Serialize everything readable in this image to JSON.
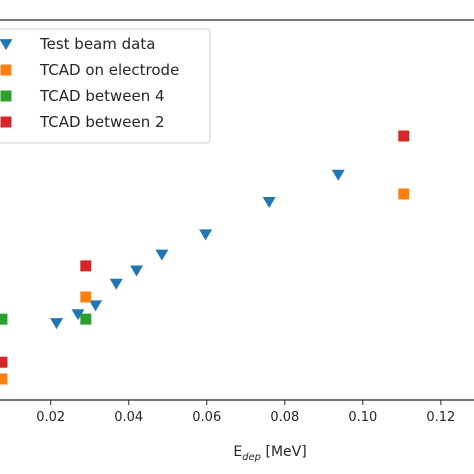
{
  "chart_data": {
    "type": "scatter",
    "title": "",
    "xlabel_main": "E",
    "xlabel_sub": "dep",
    "xlabel_unit": " [MeV]",
    "ylabel": "",
    "xlim": [
      0.007,
      0.1285
    ],
    "ylim": [
      0.0,
      1.0
    ],
    "x_ticks": [
      0.02,
      0.04,
      0.06,
      0.08,
      0.1,
      0.12
    ],
    "x_tick_labels": [
      "0.02",
      "0.04",
      "0.06",
      "0.08",
      "0.10",
      "0.12"
    ],
    "grid": false,
    "legend_position": "upper-left",
    "series": [
      {
        "name": "Test beam data",
        "marker": "triangle-down",
        "color": "#1f77b4",
        "x": [
          0.0215,
          0.027,
          0.0315,
          0.0368,
          0.042,
          0.0485,
          0.0597,
          0.076,
          0.0937
        ],
        "y": [
          0.1987,
          0.2302,
          0.2617,
          0.3382,
          0.3854,
          0.4416,
          0.5135,
          0.6281,
          0.7247
        ]
      },
      {
        "name": "TCAD on electrode",
        "marker": "square",
        "color": "#ff7f0e",
        "x": [
          0.0075,
          0.029,
          0.1105
        ],
        "y": [
          0.0,
          0.291,
          0.6562
        ]
      },
      {
        "name": "TCAD between 4",
        "marker": "square",
        "color": "#2ca02c",
        "x": [
          0.0075,
          0.029
        ],
        "y": [
          0.2123,
          0.2123
        ]
      },
      {
        "name": "TCAD between 2",
        "marker": "square",
        "color": "#d62728",
        "x": [
          0.0075,
          0.029,
          0.1105
        ],
        "y": [
          0.0595,
          0.4011,
          0.8617
        ]
      }
    ]
  }
}
